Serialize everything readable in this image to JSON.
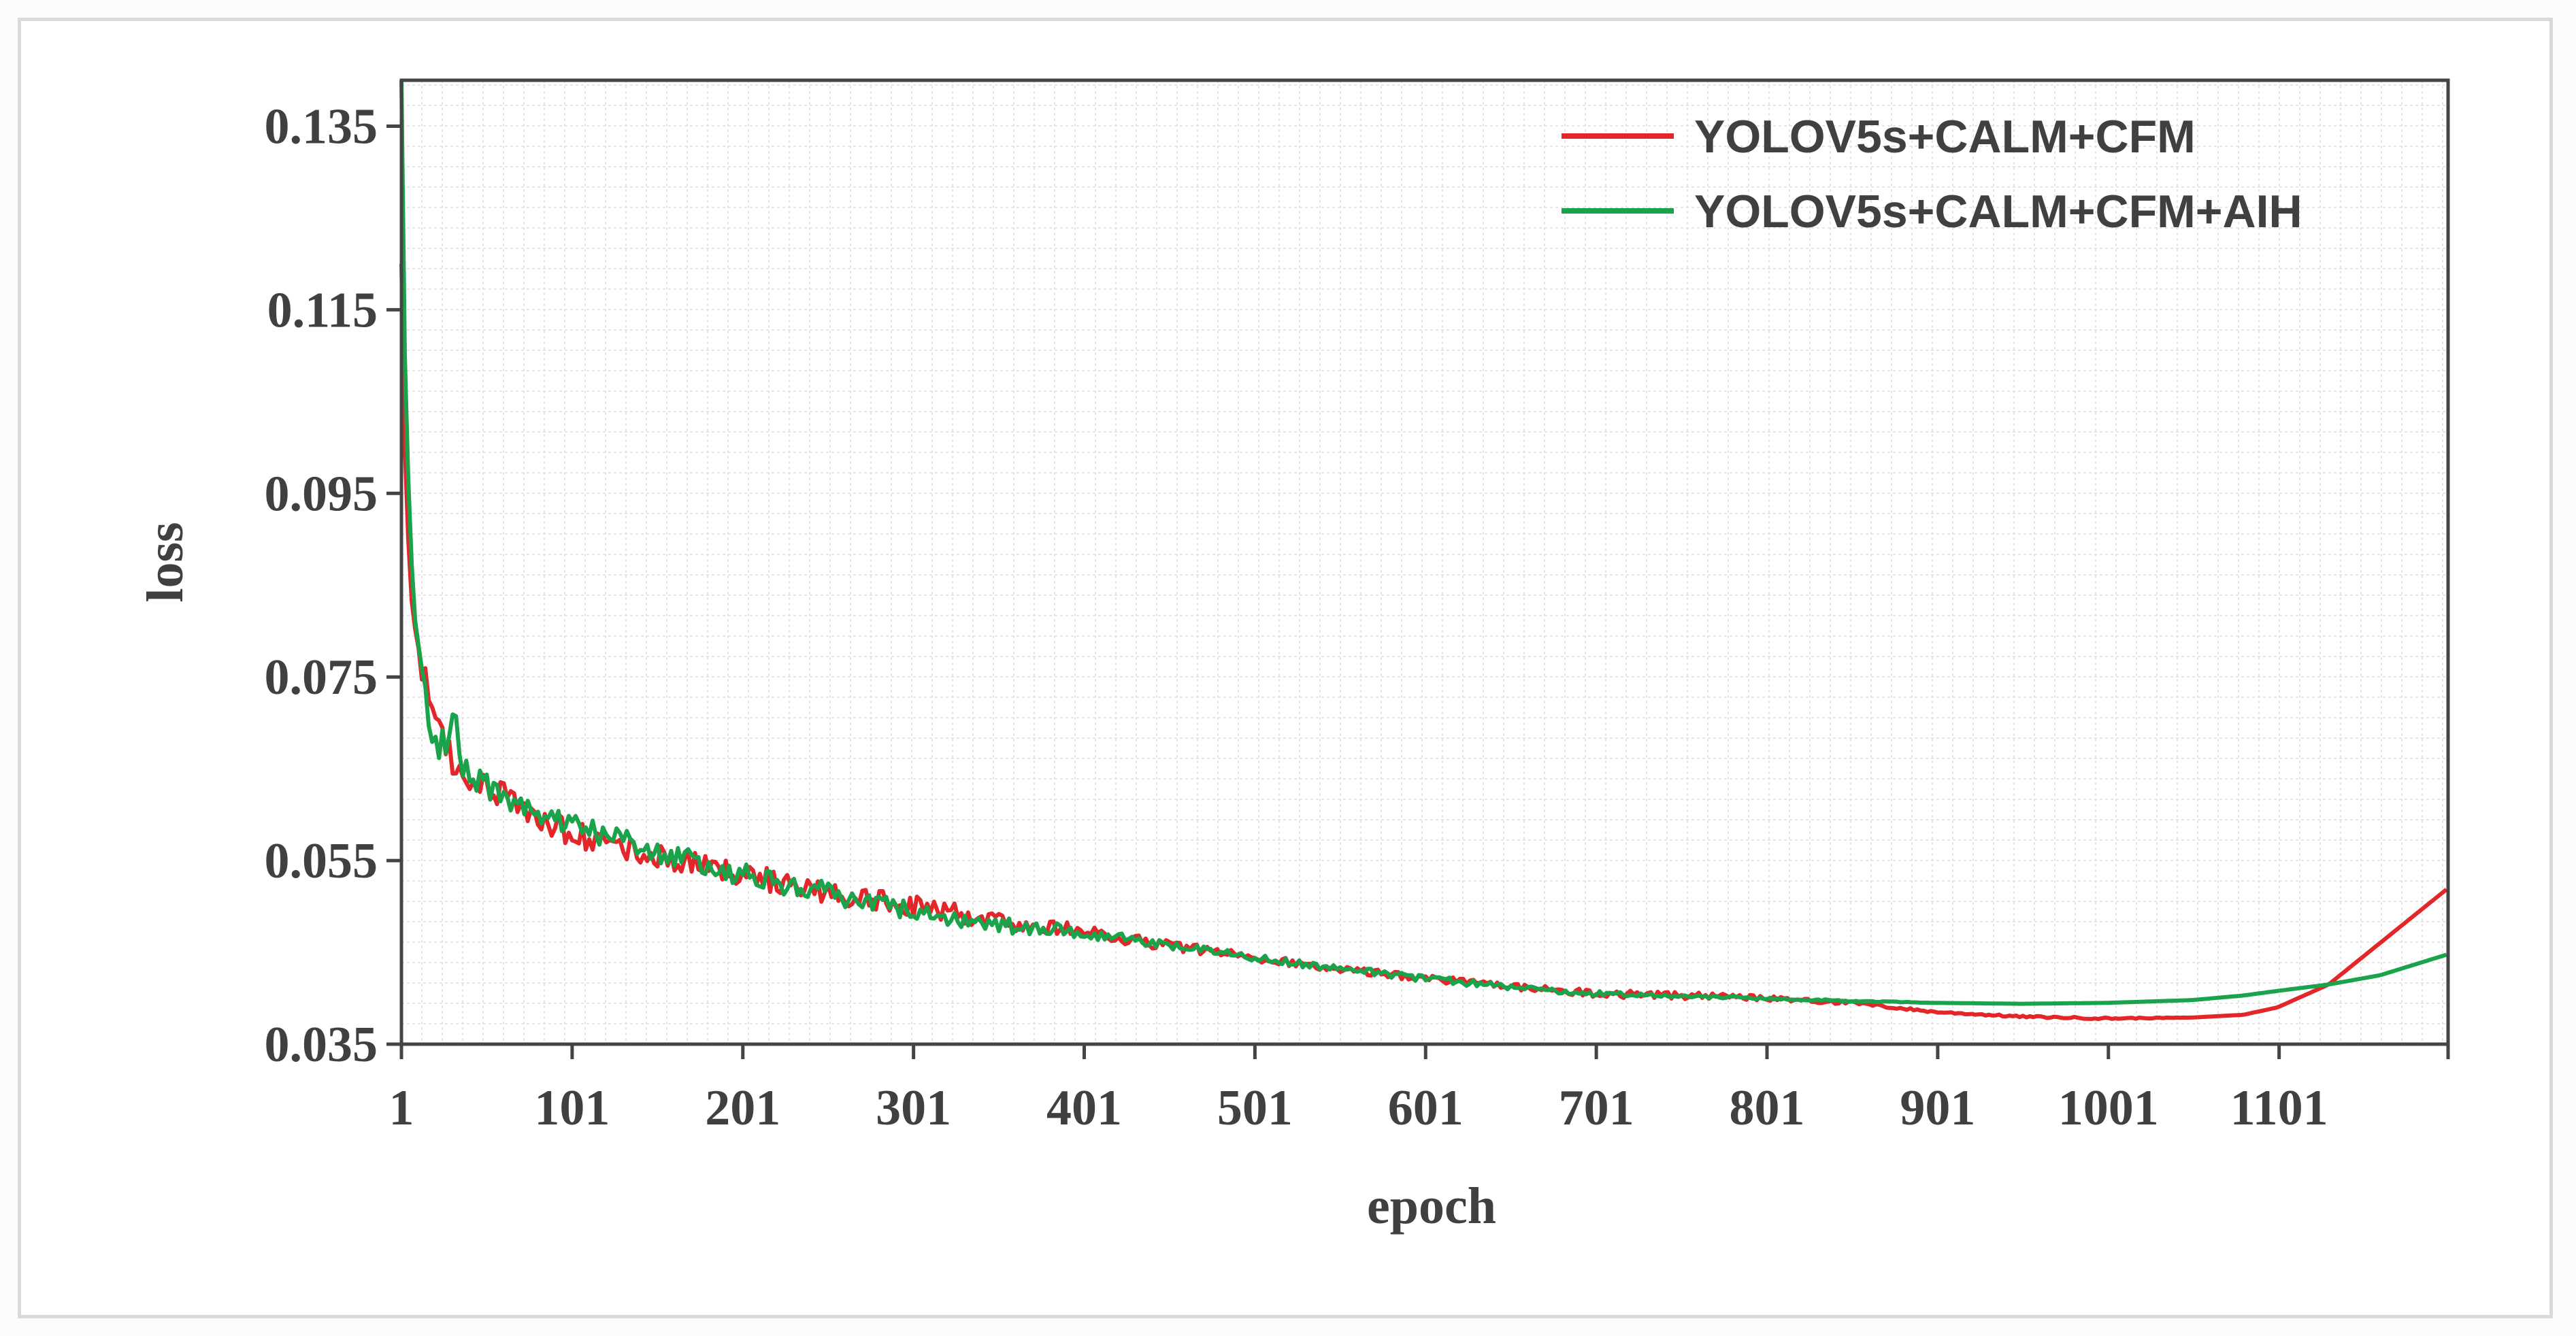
{
  "chart_data": {
    "type": "line",
    "xlabel": "epoch",
    "ylabel": "loss",
    "x_ticks": [
      "1",
      "101",
      "201",
      "301",
      "401",
      "501",
      "601",
      "701",
      "801",
      "901",
      "1001",
      "1101"
    ],
    "y_ticks": [
      "0.035",
      "0.055",
      "0.075",
      "0.095",
      "0.115",
      "0.135"
    ],
    "xlim": [
      1,
      1200
    ],
    "ylim": [
      0.035,
      0.14
    ],
    "grid": true,
    "legend_position": "top-right",
    "series": [
      {
        "name": "YOLOV5s+CALM+CFM",
        "color": "#e3262a",
        "x": [
          1,
          3,
          6,
          10,
          15,
          20,
          30,
          40,
          60,
          80,
          100,
          150,
          200,
          250,
          300,
          350,
          400,
          450,
          500,
          550,
          600,
          650,
          700,
          750,
          800,
          850,
          900,
          950,
          1000,
          1050,
          1080,
          1100,
          1130,
          1160,
          1200
        ],
        "y": [
          0.12,
          0.1,
          0.085,
          0.079,
          0.074,
          0.07,
          0.066,
          0.064,
          0.062,
          0.06,
          0.058,
          0.0555,
          0.0535,
          0.0515,
          0.05,
          0.0485,
          0.0472,
          0.0458,
          0.0445,
          0.0432,
          0.0422,
          0.0413,
          0.0405,
          0.0403,
          0.04,
          0.0395,
          0.0385,
          0.038,
          0.0378,
          0.0379,
          0.0382,
          0.039,
          0.0415,
          0.046,
          0.052
        ],
        "noise": [
          0,
          0,
          0,
          0.002,
          0.002,
          0.002,
          0.0018,
          0.0017,
          0.0016,
          0.0015,
          0.0014,
          0.0013,
          0.0013,
          0.0013,
          0.0012,
          0.001,
          0.0008,
          0.0006,
          0.0005,
          0.0004,
          0.0004,
          0.0004,
          0.0004,
          0.0004,
          0.0003,
          0.0002,
          0.0001,
          0.0001,
          0.0001,
          0,
          0,
          0,
          0,
          0,
          0
        ]
      },
      {
        "name": "YOLOV5s+CALM+CFM+AIH",
        "color": "#1aa34a",
        "x": [
          1,
          3,
          6,
          10,
          15,
          20,
          30,
          32,
          34,
          40,
          60,
          80,
          100,
          150,
          200,
          250,
          300,
          350,
          400,
          450,
          500,
          550,
          600,
          650,
          700,
          750,
          800,
          850,
          900,
          950,
          1000,
          1050,
          1080,
          1100,
          1130,
          1160,
          1200
        ],
        "y": [
          0.14,
          0.11,
          0.09,
          0.08,
          0.072,
          0.068,
          0.067,
          0.076,
          0.066,
          0.064,
          0.062,
          0.0605,
          0.059,
          0.056,
          0.0535,
          0.0515,
          0.0495,
          0.048,
          0.0472,
          0.0458,
          0.0445,
          0.0432,
          0.0422,
          0.0412,
          0.0405,
          0.0402,
          0.04,
          0.0397,
          0.0395,
          0.0394,
          0.0395,
          0.0398,
          0.0403,
          0.0408,
          0.0415,
          0.0425,
          0.0448
        ],
        "noise": [
          0,
          0,
          0,
          0.002,
          0.002,
          0.002,
          0.0016,
          0,
          0.0016,
          0.0016,
          0.0015,
          0.0014,
          0.0013,
          0.0012,
          0.0012,
          0.0012,
          0.0011,
          0.0009,
          0.0007,
          0.0005,
          0.0004,
          0.0004,
          0.0004,
          0.0003,
          0.0003,
          0.0002,
          0.0001,
          0.0001,
          0,
          0,
          0,
          0,
          0,
          0,
          0,
          0,
          0
        ]
      }
    ]
  }
}
